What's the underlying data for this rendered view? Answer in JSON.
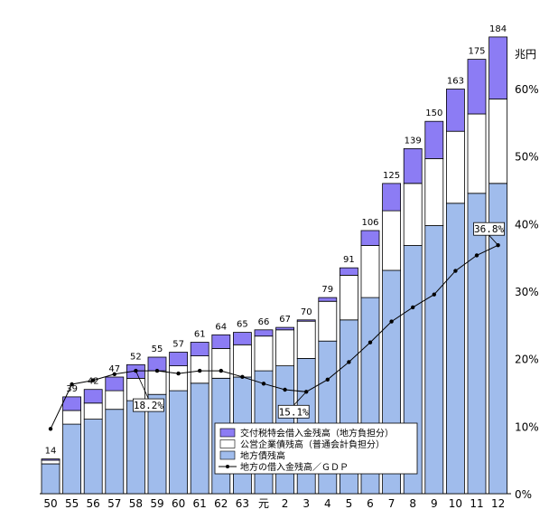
{
  "colors": {
    "local_bonds": "#a0bcec",
    "public_enterprise": "#ffffff",
    "special_account": "#8c7cf4",
    "line": "#000000",
    "bar_outline": "#000000"
  },
  "chart_data": {
    "type": "bar",
    "stacked": true,
    "unit_label": "兆円",
    "categories": [
      "50",
      "55",
      "56",
      "57",
      "58",
      "59",
      "60",
      "61",
      "62",
      "63",
      "元",
      "2",
      "3",
      "4",
      "5",
      "6",
      "7",
      "8",
      "9",
      "10",
      "11",
      "12"
    ],
    "totals": [
      14,
      39,
      42,
      47,
      52,
      55,
      57,
      61,
      64,
      65,
      66,
      67,
      70,
      79,
      91,
      106,
      125,
      139,
      150,
      163,
      175,
      184
    ],
    "series": [
      {
        "name": "交付税特会借入金残高（地方負担分）",
        "values": [
          0.5,
          5.5,
          5.5,
          5.5,
          5.5,
          5.5,
          5.5,
          5.5,
          5.5,
          5.0,
          2.5,
          1.0,
          0.5,
          1.5,
          3.0,
          6.0,
          11.0,
          14.0,
          15.0,
          17.0,
          22.0,
          25.0
        ]
      },
      {
        "name": "公営企業債残高（普通会計負担分）",
        "values": [
          1.5,
          5.5,
          6.5,
          7.5,
          9.0,
          9.5,
          10.0,
          11.0,
          12.0,
          13.0,
          14.0,
          14.5,
          15.0,
          16.0,
          18.0,
          21.0,
          24.0,
          25.0,
          27.0,
          29.0,
          32.0,
          34.0
        ]
      },
      {
        "name": "地方債残高",
        "values": [
          12.0,
          28.0,
          30.0,
          34.0,
          37.5,
          40.0,
          41.5,
          44.5,
          46.5,
          47.0,
          49.5,
          51.5,
          54.5,
          61.5,
          70.0,
          79.0,
          90.0,
          100.0,
          108.0,
          117.0,
          121.0,
          125.0
        ]
      }
    ],
    "ratio_line": {
      "name": "地方の借入金残高／ＧＤＰ",
      "values_pct": [
        9.6,
        16.2,
        16.8,
        17.7,
        18.2,
        18.2,
        17.8,
        18.2,
        18.2,
        17.3,
        16.3,
        15.4,
        15.1,
        16.9,
        19.5,
        22.4,
        25.5,
        27.6,
        29.5,
        33.0,
        35.3,
        36.8
      ]
    },
    "callouts": [
      {
        "category": "58",
        "label": "18.2%"
      },
      {
        "category": "3",
        "label": "15.1%"
      },
      {
        "category": "12",
        "label": "36.8%"
      }
    ],
    "y_axis_right": {
      "label": "兆円",
      "ticks_pct": [
        "0%",
        "10%",
        "20%",
        "30%",
        "40%",
        "50%",
        "60%"
      ],
      "range_pct": [
        0,
        65
      ]
    },
    "left_scale_trillion_per_10pct": 27.2
  }
}
